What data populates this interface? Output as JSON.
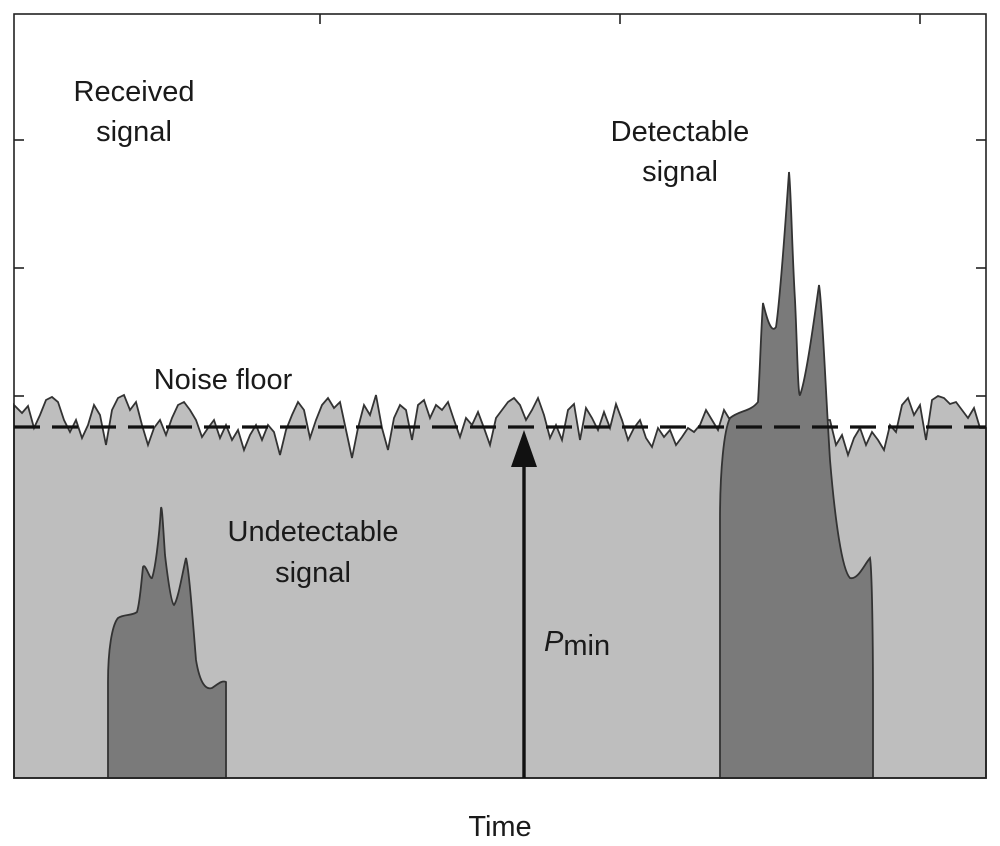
{
  "diagram": {
    "labels": {
      "received_line1": "Received",
      "received_line2": "signal",
      "detectable_line1": "Detectable",
      "detectable_line2": "signal",
      "noise_floor": "Noise floor",
      "undetectable_line1": "Undetectable",
      "undetectable_line2": "signal",
      "pmin_symbol": "P",
      "pmin_subscript": "min",
      "x_axis": "Time"
    },
    "colors": {
      "noise_fill": "#bebebe",
      "signal_fill": "#7a7a7a",
      "outline": "#333333",
      "frame": "#222222",
      "arrow": "#111111"
    }
  }
}
